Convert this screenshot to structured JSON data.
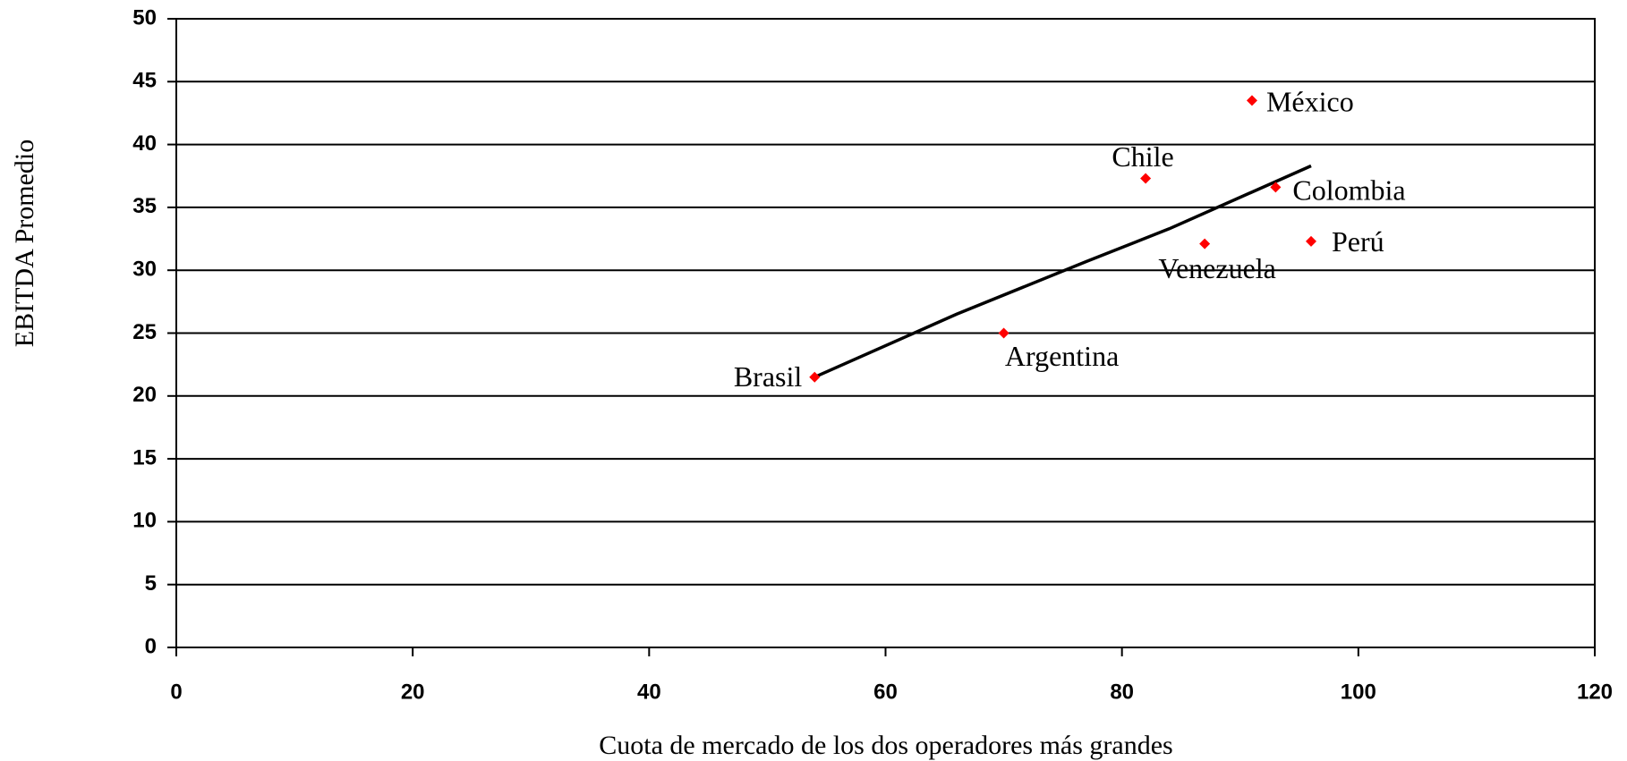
{
  "chart_data": {
    "type": "scatter",
    "x_label": "Cuota de mercado de los dos operadores más grandes",
    "y_label": "EBITDA Promedio",
    "series": [
      {
        "color": "#ff0000",
        "marker": "diamond",
        "x": [
          54,
          70,
          82,
          87,
          91,
          93,
          96
        ],
        "values": [
          21.5,
          25,
          37.3,
          32.1,
          43.5,
          36.6,
          32.3
        ],
        "point_labels": [
          "Brasil",
          "Argentina",
          "Chile",
          "Venezuela",
          "México",
          "Colombia",
          "Perú"
        ]
      }
    ],
    "trendline": {
      "color": "#000000",
      "x": [
        54,
        66,
        77,
        84,
        96
      ],
      "values": [
        21.5,
        26.5,
        30.7,
        33.3,
        38.3
      ]
    },
    "xlim": [
      0,
      120
    ],
    "xticks": [
      0,
      20,
      40,
      60,
      80,
      100,
      120
    ],
    "ylim": [
      0,
      50
    ],
    "yticks": [
      0,
      5,
      10,
      15,
      20,
      25,
      30,
      35,
      40,
      45,
      50
    ],
    "grid": true
  }
}
